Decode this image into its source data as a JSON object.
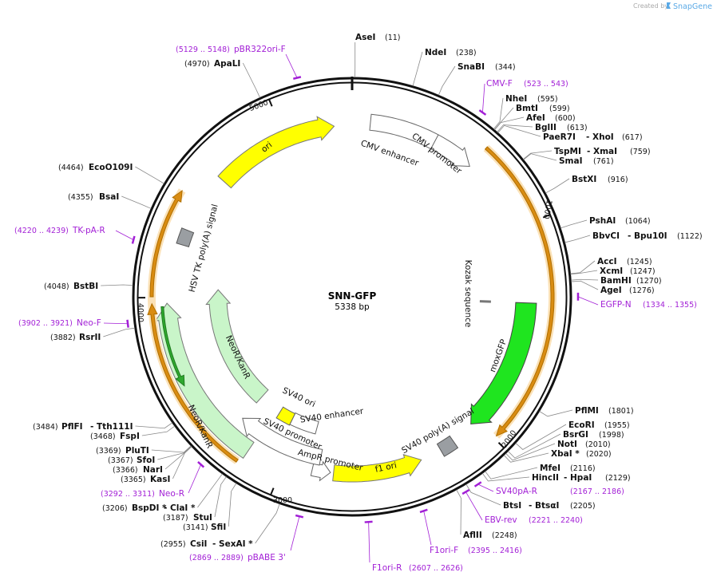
{
  "credit": "Created by",
  "brand": "SnapGene",
  "name": "SNN-GFP",
  "length": "5338 bp",
  "enzymes": [
    {
      "names": [
        "AseI"
      ],
      "site": "(11)"
    },
    {
      "names": [
        "NdeI"
      ],
      "site": "(238)"
    },
    {
      "names": [
        "SnaBI"
      ],
      "site": "(344)"
    },
    {
      "names": [
        "NheI"
      ],
      "site": "(595)"
    },
    {
      "names": [
        "BmtI"
      ],
      "site": "(599)"
    },
    {
      "names": [
        "AfeI"
      ],
      "site": "(600)"
    },
    {
      "names": [
        "BglII"
      ],
      "site": "(613)"
    },
    {
      "names": [
        "PaeR7I",
        "- XhoI"
      ],
      "site": "(617)"
    },
    {
      "names": [
        "TspMI",
        "- XmaI"
      ],
      "site": "(759)"
    },
    {
      "names": [
        "SmaI"
      ],
      "site": "(761)"
    },
    {
      "names": [
        "BstXI"
      ],
      "site": "(916)"
    },
    {
      "names": [
        "PshAI"
      ],
      "site": "(1064)"
    },
    {
      "names": [
        "BbvCI",
        "- Bpu10I"
      ],
      "site": "(1122)"
    },
    {
      "names": [
        "AccI"
      ],
      "site": "(1245)"
    },
    {
      "names": [
        "XcmI"
      ],
      "site": "(1247)"
    },
    {
      "names": [
        "BamHI"
      ],
      "site": "(1270)"
    },
    {
      "names": [
        "AgeI"
      ],
      "site": "(1276)"
    },
    {
      "names": [
        "PflMI"
      ],
      "site": "(1801)"
    },
    {
      "names": [
        "EcoRI"
      ],
      "site": "(1955)"
    },
    {
      "names": [
        "BsrGI"
      ],
      "site": "(1998)"
    },
    {
      "names": [
        "NotI"
      ],
      "site": "(2010)"
    },
    {
      "names": [
        "XbaI *"
      ],
      "site": "(2020)"
    },
    {
      "names": [
        "MfeI"
      ],
      "site": "(2116)"
    },
    {
      "names": [
        "HincII",
        "- HpaI"
      ],
      "site": "(2129)"
    },
    {
      "names": [
        "BtsI",
        "- BtsαI"
      ],
      "site": "(2205)"
    },
    {
      "names": [
        "AflII"
      ],
      "site": "(2248)"
    },
    {
      "names": [
        "CsiI",
        "- SexAI *"
      ],
      "site": "(2955)"
    },
    {
      "names": [
        "SfiI"
      ],
      "site": "(3141)"
    },
    {
      "names": [
        "StuI"
      ],
      "site": "(3187)"
    },
    {
      "names": [
        "BspDI *",
        "- ClaI *"
      ],
      "site": "(3206)"
    },
    {
      "names": [
        "KasI"
      ],
      "site": "(3365)"
    },
    {
      "names": [
        "NarI"
      ],
      "site": "(3366)"
    },
    {
      "names": [
        "SfoI"
      ],
      "site": "(3367)"
    },
    {
      "names": [
        "PluTI"
      ],
      "site": "(3369)"
    },
    {
      "names": [
        "FspI"
      ],
      "site": "(3468)"
    },
    {
      "names": [
        "PflFI",
        "- Tth111I"
      ],
      "site": "(3484)"
    },
    {
      "names": [
        "RsrII"
      ],
      "site": "(3882)"
    },
    {
      "names": [
        "BstBI"
      ],
      "site": "(4048)"
    },
    {
      "names": [
        "BsaI"
      ],
      "site": "(4355)"
    },
    {
      "names": [
        "EcoO109I"
      ],
      "site": "(4464)"
    },
    {
      "names": [
        "ApaLI"
      ],
      "site": "(4970)"
    }
  ],
  "primers": [
    {
      "name": "pBR322ori-F",
      "site": "(5129 .. 5148)"
    },
    {
      "name": "CMV-F",
      "site": "(523 .. 543)"
    },
    {
      "name": "EGFP-N",
      "site": "(1334 .. 1355)"
    },
    {
      "name": "TK-pA-R",
      "site": "(4220 .. 4239)"
    },
    {
      "name": "Neo-F",
      "site": "(3902 .. 3921)"
    },
    {
      "name": "Neo-R",
      "site": "(3292 .. 3311)"
    },
    {
      "name": "SV40pA-R",
      "site": "(2167 .. 2186)"
    },
    {
      "name": "EBV-rev",
      "site": "(2221 .. 2240)"
    },
    {
      "name": "F1ori-F",
      "site": "(2395 .. 2416)"
    },
    {
      "name": "F1ori-R",
      "site": "(2607 .. 2626)"
    },
    {
      "name": "pBABE 3'",
      "site": "(2869 .. 2889)"
    }
  ],
  "features": [
    "ori",
    "CMV enhancer",
    "CMV promoter",
    "Kozak sequence",
    "moxGFP",
    "SV40 poly(A) signal",
    "f1 ori",
    "AmpR promoter",
    "SV40 promoter",
    "SV40 ori",
    "SV40 enhancer",
    "NeoR/KanR",
    "NeoR/KanR",
    "HSV TK poly(A) signal"
  ],
  "ticks": [
    "1000",
    "2000",
    "3000",
    "4000",
    "5000"
  ]
}
